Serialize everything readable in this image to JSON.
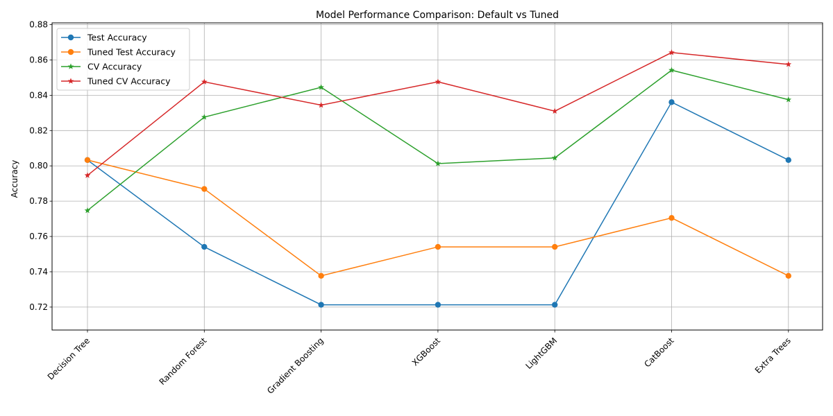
{
  "chart_data": {
    "type": "line",
    "title": "Model Performance Comparison: Default vs Tuned",
    "xlabel": "",
    "ylabel": "Accuracy",
    "categories": [
      "Decision Tree",
      "Random Forest",
      "Gradient Boosting",
      "XGBoost",
      "LightGBM",
      "CatBoost",
      "Extra Trees"
    ],
    "ylim": [
      0.707,
      0.881
    ],
    "yticks": [
      "0.72",
      "0.74",
      "0.76",
      "0.78",
      "0.80",
      "0.82",
      "0.84",
      "0.86",
      "0.88"
    ],
    "grid": true,
    "legend_position": "upper-left",
    "series": [
      {
        "name": "Test Accuracy",
        "color": "#1f77b4",
        "marker": "circle",
        "values": [
          0.8033,
          0.7541,
          0.7213,
          0.7213,
          0.7213,
          0.8361,
          0.8033
        ]
      },
      {
        "name": "Tuned Test Accuracy",
        "color": "#ff7f0e",
        "marker": "circle",
        "values": [
          0.8033,
          0.7869,
          0.7377,
          0.7541,
          0.7541,
          0.7705,
          0.7377
        ]
      },
      {
        "name": "CV Accuracy",
        "color": "#2ca02c",
        "marker": "star",
        "values": [
          0.7747,
          0.8276,
          0.8445,
          0.8013,
          0.8045,
          0.8542,
          0.8375
        ]
      },
      {
        "name": "Tuned CV Accuracy",
        "color": "#d62728",
        "marker": "star",
        "values": [
          0.7946,
          0.8476,
          0.8344,
          0.8476,
          0.831,
          0.8642,
          0.8575
        ]
      }
    ]
  }
}
